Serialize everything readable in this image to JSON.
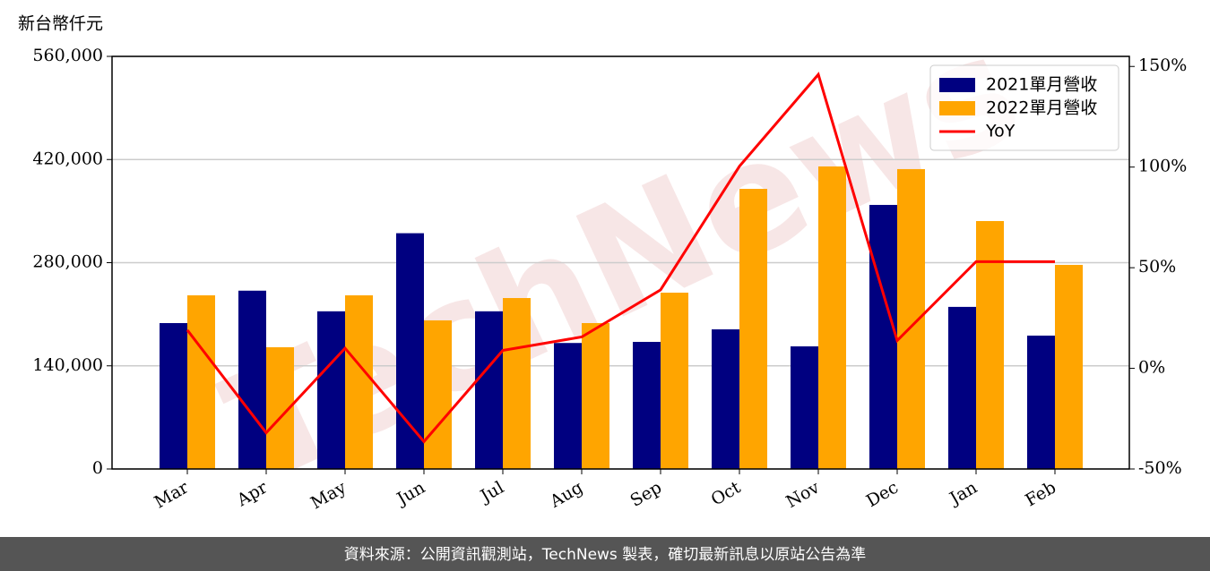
{
  "chart_data": {
    "type": "bar",
    "unit_label": "新台幣仟元",
    "watermark": "TechNews",
    "footer": "資料來源：公開資訊觀測站，TechNews 製表，確切最新訊息以原站公告為準",
    "categories": [
      "Mar",
      "Apr",
      "May",
      "Jun",
      "Jul",
      "Aug",
      "Sep",
      "Oct",
      "Nov",
      "Dec",
      "Jan",
      "Feb"
    ],
    "series": [
      {
        "name": "2021單月營收",
        "color": "#000080",
        "type": "bar",
        "values": [
          198000,
          242000,
          214000,
          320000,
          214000,
          171000,
          172500,
          189500,
          166400,
          358400,
          220000,
          181000
        ]
      },
      {
        "name": "2022單月營收",
        "color": "#ffa500",
        "type": "bar",
        "values": [
          235700,
          165200,
          235700,
          201700,
          232000,
          198000,
          239300,
          380200,
          410600,
          407000,
          336500,
          277000
        ]
      },
      {
        "name": "YoY",
        "color": "#ff0000",
        "type": "line",
        "axis": "y2",
        "values": [
          19,
          -32,
          10,
          -36.4,
          8.9,
          15.6,
          39,
          100.4,
          146,
          13.8,
          53,
          53
        ]
      }
    ],
    "ylim": [
      0,
      560000
    ],
    "yticks": [
      0,
      {
        "value": 140000,
        "label": "140,000"
      },
      {
        "value": 280000,
        "label": "280,000"
      },
      {
        "value": 420000,
        "label": "420,000"
      },
      {
        "value": 560000,
        "label": "560,000"
      }
    ],
    "y2lim": [
      -50,
      155
    ],
    "y2ticks": [
      {
        "value": -50,
        "label": "-50%"
      },
      {
        "value": 0,
        "label": "0%"
      },
      {
        "value": 50,
        "label": "50%"
      },
      {
        "value": 100,
        "label": "100%"
      },
      {
        "value": 150,
        "label": "150%"
      }
    ],
    "grid": true,
    "legend": "upper right"
  }
}
